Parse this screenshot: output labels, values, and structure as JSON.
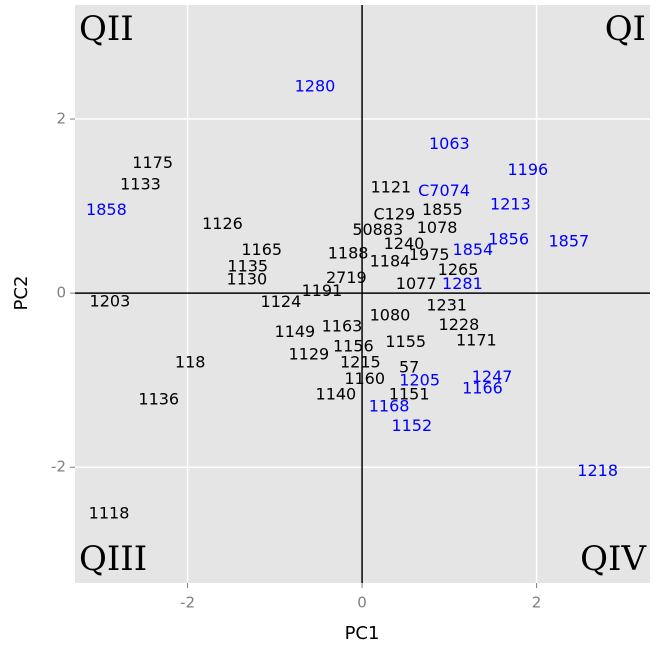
{
  "chart_data": {
    "type": "scatter",
    "mark": "text",
    "x_label": "PC1",
    "y_label": "PC2",
    "xlim": [
      -3.29,
      3.3
    ],
    "ylim": [
      -3.33,
      3.31
    ],
    "xticks": [
      -2,
      0,
      2
    ],
    "yticks": [
      -2,
      0,
      2
    ],
    "grid": true,
    "hline": 0,
    "vline": 0,
    "annotations": [
      "QII",
      "QI",
      "QIII",
      "QIV"
    ],
    "points": [
      {
        "label": "1280",
        "x": -0.54,
        "y": 2.37,
        "color": "#0000ff"
      },
      {
        "label": "1063",
        "x": 1.0,
        "y": 1.71,
        "color": "#0000ff"
      },
      {
        "label": "1196",
        "x": 1.9,
        "y": 1.41,
        "color": "#0000ff"
      },
      {
        "label": "1175",
        "x": -2.4,
        "y": 1.49,
        "color": "#000000"
      },
      {
        "label": "1133",
        "x": -2.54,
        "y": 1.24,
        "color": "#000000"
      },
      {
        "label": "1858",
        "x": -2.93,
        "y": 0.95,
        "color": "#0000ff"
      },
      {
        "label": "1121",
        "x": 0.33,
        "y": 1.21,
        "color": "#000000"
      },
      {
        "label": "C7074",
        "x": 0.94,
        "y": 1.17,
        "color": "#0000ff"
      },
      {
        "label": "1213",
        "x": 1.7,
        "y": 1.01,
        "color": "#0000ff"
      },
      {
        "label": "1126",
        "x": -1.6,
        "y": 0.79,
        "color": "#000000"
      },
      {
        "label": "C129",
        "x": 0.37,
        "y": 0.9,
        "color": "#000000"
      },
      {
        "label": "1855",
        "x": 0.92,
        "y": 0.95,
        "color": "#000000"
      },
      {
        "label": "50883",
        "x": 0.18,
        "y": 0.72,
        "color": "#000000"
      },
      {
        "label": "1078",
        "x": 0.86,
        "y": 0.74,
        "color": "#000000"
      },
      {
        "label": "1856",
        "x": 1.68,
        "y": 0.61,
        "color": "#0000ff"
      },
      {
        "label": "1857",
        "x": 2.37,
        "y": 0.59,
        "color": "#0000ff"
      },
      {
        "label": "1240",
        "x": 0.48,
        "y": 0.56,
        "color": "#000000"
      },
      {
        "label": "1854",
        "x": 1.27,
        "y": 0.49,
        "color": "#0000ff"
      },
      {
        "label": "1165",
        "x": -1.15,
        "y": 0.49,
        "color": "#000000"
      },
      {
        "label": "1188",
        "x": -0.16,
        "y": 0.45,
        "color": "#000000"
      },
      {
        "label": "1975",
        "x": 0.77,
        "y": 0.43,
        "color": "#000000"
      },
      {
        "label": "1184",
        "x": 0.32,
        "y": 0.36,
        "color": "#000000"
      },
      {
        "label": "1135",
        "x": -1.31,
        "y": 0.3,
        "color": "#000000"
      },
      {
        "label": "1265",
        "x": 1.1,
        "y": 0.26,
        "color": "#000000"
      },
      {
        "label": "2719",
        "x": -0.18,
        "y": 0.17,
        "color": "#000000"
      },
      {
        "label": "1130",
        "x": -1.32,
        "y": 0.15,
        "color": "#000000"
      },
      {
        "label": "1077",
        "x": 0.62,
        "y": 0.1,
        "color": "#000000"
      },
      {
        "label": "1281",
        "x": 1.15,
        "y": 0.1,
        "color": "#0000ff"
      },
      {
        "label": "1191",
        "x": -0.46,
        "y": 0.02,
        "color": "#000000"
      },
      {
        "label": "1203",
        "x": -2.89,
        "y": -0.1,
        "color": "#000000"
      },
      {
        "label": "1124",
        "x": -0.93,
        "y": -0.11,
        "color": "#000000"
      },
      {
        "label": "1231",
        "x": 0.97,
        "y": -0.15,
        "color": "#000000"
      },
      {
        "label": "1080",
        "x": 0.32,
        "y": -0.26,
        "color": "#000000"
      },
      {
        "label": "1228",
        "x": 1.11,
        "y": -0.37,
        "color": "#000000"
      },
      {
        "label": "1163",
        "x": -0.23,
        "y": -0.39,
        "color": "#000000"
      },
      {
        "label": "1149",
        "x": -0.77,
        "y": -0.45,
        "color": "#000000"
      },
      {
        "label": "1171",
        "x": 1.31,
        "y": -0.55,
        "color": "#000000"
      },
      {
        "label": "1155",
        "x": 0.5,
        "y": -0.57,
        "color": "#000000"
      },
      {
        "label": "1156",
        "x": -0.1,
        "y": -0.62,
        "color": "#000000"
      },
      {
        "label": "1129",
        "x": -0.61,
        "y": -0.71,
        "color": "#000000"
      },
      {
        "label": "1215",
        "x": -0.02,
        "y": -0.8,
        "color": "#000000"
      },
      {
        "label": "118",
        "x": -1.97,
        "y": -0.8,
        "color": "#000000"
      },
      {
        "label": "57",
        "x": 0.54,
        "y": -0.86,
        "color": "#000000"
      },
      {
        "label": "1247",
        "x": 1.49,
        "y": -0.97,
        "color": "#0000ff"
      },
      {
        "label": "1160",
        "x": 0.03,
        "y": -0.99,
        "color": "#000000"
      },
      {
        "label": "1205",
        "x": 0.66,
        "y": -1.01,
        "color": "#0000ff"
      },
      {
        "label": "1166",
        "x": 1.38,
        "y": -1.1,
        "color": "#0000ff"
      },
      {
        "label": "1151",
        "x": 0.54,
        "y": -1.17,
        "color": "#000000"
      },
      {
        "label": "1140",
        "x": -0.3,
        "y": -1.17,
        "color": "#000000"
      },
      {
        "label": "1136",
        "x": -2.33,
        "y": -1.23,
        "color": "#000000"
      },
      {
        "label": "1168",
        "x": 0.31,
        "y": -1.31,
        "color": "#0000ff"
      },
      {
        "label": "1152",
        "x": 0.57,
        "y": -1.53,
        "color": "#0000ff"
      },
      {
        "label": "1218",
        "x": 2.7,
        "y": -2.05,
        "color": "#0000ff"
      },
      {
        "label": "1118",
        "x": -2.9,
        "y": -2.54,
        "color": "#000000"
      }
    ]
  }
}
